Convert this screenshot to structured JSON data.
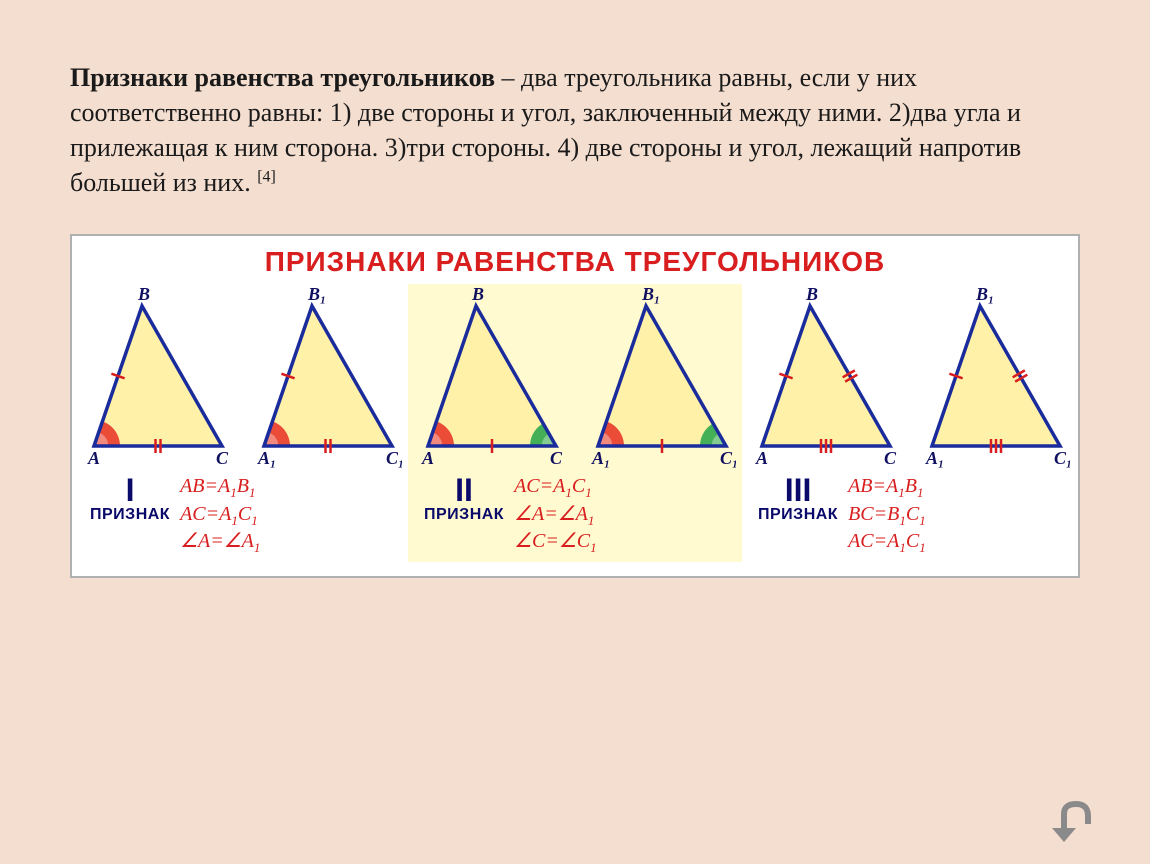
{
  "main_text": {
    "bold_lead": "Признаки равенства треугольников",
    "rest": " – два треугольника равны, если у них соответственно равны: 1) две стороны и угол, заключенный между ними. 2)два угла и прилежащая к ним сторона. 3)три стороны. 4) две стороны и угол, лежащий напротив большей из них. ",
    "ref": "[4]"
  },
  "figure": {
    "title": "ПРИЗНАКИ РАВЕНСТВА ТРЕУГОЛЬНИКОВ",
    "title_color": "#d81e1e",
    "panel_bgs": [
      "#ffffff",
      "#fffad0",
      "#ffffff"
    ],
    "triangle_stroke": "#1a2b9c",
    "triangle_stroke_width": 3.5,
    "fill_gradient_top": "#ffffcc",
    "fill_gradient_bottom": "#fff2a8",
    "vertex_color": "#101060",
    "vertex_font_size": 18,
    "tick_color": "#d81e1e",
    "angle_red": "#e83a2a",
    "angle_green": "#2fa84f",
    "formula_color": "#d81e1e",
    "label_color": "#0a0a6a",
    "panels": [
      {
        "roman": "I",
        "word": "ПРИЗНАК",
        "labels1": {
          "A": "A",
          "B": "B",
          "C": "C"
        },
        "labels2": {
          "A": "A₁",
          "B": "B₁",
          "C": "C₁"
        },
        "formulas": [
          "AB=A₁B₁",
          "AC=A₁C₁",
          "∠A=∠A₁"
        ],
        "ticks_left": 1,
        "ticks_bottom": 2,
        "ticks_right": 0,
        "angle_A": "red",
        "angle_C": null
      },
      {
        "roman": "II",
        "word": "ПРИЗНАК",
        "labels1": {
          "A": "A",
          "B": "B",
          "C": "C"
        },
        "labels2": {
          "A": "A₁",
          "B": "B₁",
          "C": "C₁"
        },
        "formulas": [
          "AC=A₁C₁",
          "∠A=∠A₁",
          "∠C=∠C₁"
        ],
        "ticks_left": 0,
        "ticks_bottom": 1,
        "ticks_right": 0,
        "angle_A": "red",
        "angle_C": "green"
      },
      {
        "roman": "III",
        "word": "ПРИЗНАК",
        "labels1": {
          "A": "A",
          "B": "B",
          "C": "C"
        },
        "labels2": {
          "A": "A₁",
          "B": "B₁",
          "C": "C₁"
        },
        "formulas": [
          "AB=A₁B₁",
          "BC=B₁C₁",
          "AC=A₁C₁"
        ],
        "ticks_left": 1,
        "ticks_bottom": 3,
        "ticks_right": 2,
        "angle_A": null,
        "angle_C": null
      }
    ]
  },
  "arrow_stroke": "#8a8a8a"
}
